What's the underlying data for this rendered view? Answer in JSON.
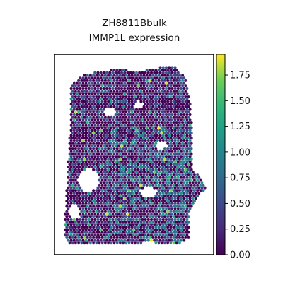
{
  "chart_data": {
    "type": "heatmap",
    "title": [
      "ZH8811Bbulk",
      "IMMP1L expression"
    ],
    "xlabel": "",
    "ylabel": "",
    "grid": false,
    "colormap": "viridis",
    "colorbar": {
      "min": 0.0,
      "max": 1.95,
      "ticks": [
        0.0,
        0.25,
        0.5,
        0.75,
        1.0,
        1.25,
        1.5,
        1.75
      ],
      "tick_labels": [
        "0.00",
        "0.25",
        "0.50",
        "0.75",
        "1.00",
        "1.25",
        "1.50",
        "1.75"
      ],
      "position": "right"
    },
    "tissue_shape_description": "spatial spot map, most spots near 0, scattered spots up to ~1.9"
  }
}
